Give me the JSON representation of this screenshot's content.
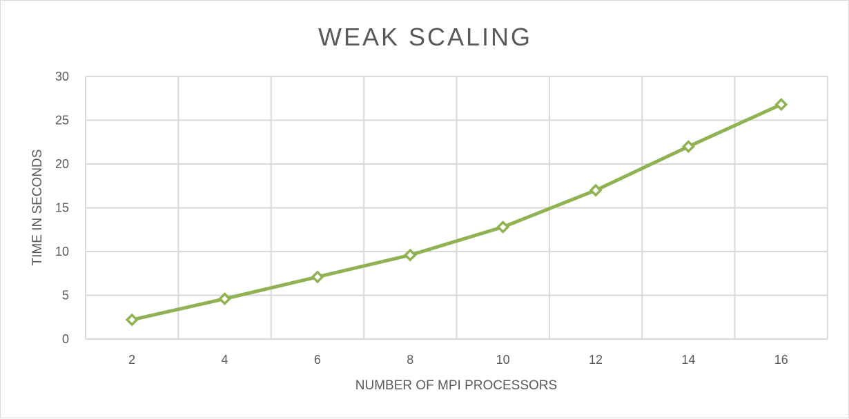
{
  "chart_data": {
    "type": "line",
    "title": "WEAK SCALING",
    "xlabel": "NUMBER OF MPI PROCESSORS",
    "ylabel": "TIME IN SECONDS",
    "categories": [
      "2",
      "4",
      "6",
      "8",
      "10",
      "12",
      "14",
      "16"
    ],
    "series": [
      {
        "values": [
          2.2,
          4.6,
          7.1,
          9.6,
          12.8,
          17.0,
          22.0,
          26.8
        ],
        "color": "#8FB352"
      }
    ],
    "ylim": [
      0,
      30
    ],
    "yticks": [
      0,
      5,
      10,
      15,
      20,
      25,
      30
    ],
    "grid": true,
    "marker": "diamond-open",
    "legend": "none"
  }
}
